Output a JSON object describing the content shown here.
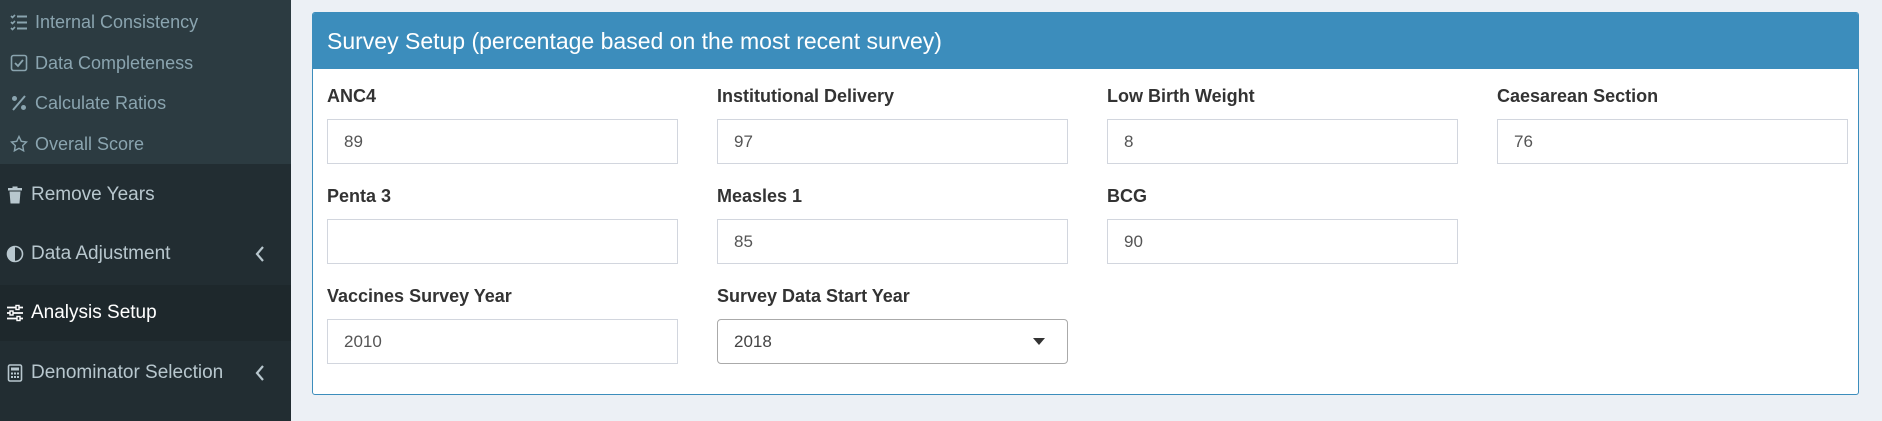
{
  "sidebar": {
    "sub_items": [
      {
        "label": "Internal Consistency",
        "icon": "list-check-icon"
      },
      {
        "label": "Data Completeness",
        "icon": "check-square-icon"
      },
      {
        "label": "Calculate Ratios",
        "icon": "percent-icon"
      },
      {
        "label": "Overall Score",
        "icon": "star-icon"
      }
    ],
    "items": [
      {
        "label": "Remove Years",
        "icon": "trash-icon"
      },
      {
        "label": "Data Adjustment",
        "icon": "adjust-icon",
        "has_chevron": true
      },
      {
        "label": "Analysis Setup",
        "icon": "sliders-icon",
        "active": true
      },
      {
        "label": "Denominator Selection",
        "icon": "calculator-icon",
        "has_chevron": true
      }
    ]
  },
  "box": {
    "title": "Survey Setup (percentage based on the most recent survey)"
  },
  "fields": {
    "anc4": {
      "label": "ANC4",
      "value": "89"
    },
    "institutional_delivery": {
      "label": "Institutional Delivery",
      "value": "97"
    },
    "low_birth_weight": {
      "label": "Low Birth Weight",
      "value": "8"
    },
    "caesarean_section": {
      "label": "Caesarean Section",
      "value": "76"
    },
    "penta3": {
      "label": "Penta 3",
      "value": ""
    },
    "measles1": {
      "label": "Measles 1",
      "value": "85"
    },
    "bcg": {
      "label": "BCG",
      "value": "90"
    },
    "vaccines_survey_year": {
      "label": "Vaccines Survey Year",
      "value": "2010"
    },
    "survey_data_start_year": {
      "label": "Survey Data Start Year",
      "value": "2018"
    }
  },
  "colors": {
    "sidebar_bg": "#222d32",
    "submenu_bg": "#2c3b41",
    "active_bg": "#1e282c",
    "header_blue": "#3c8dbc",
    "page_bg": "#ecf0f5"
  }
}
